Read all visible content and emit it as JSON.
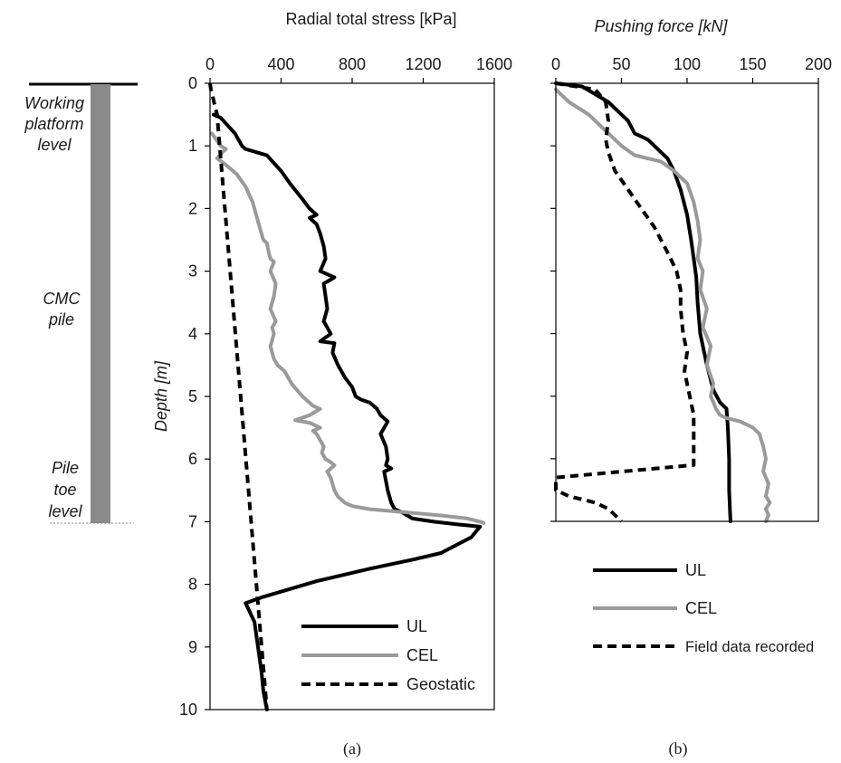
{
  "chart_data": [
    {
      "type": "line",
      "panel_label": "(a)",
      "xlabel": "Radial total stress [kPa]",
      "ylabel": "Depth [m]",
      "xlim": [
        0,
        1600
      ],
      "ylim": [
        0,
        10
      ],
      "y_inverted": true,
      "x_axis_position": "top",
      "x_ticks": [
        "0",
        "400",
        "800",
        "1200",
        "1600"
      ],
      "y_ticks": [
        "0",
        "1",
        "2",
        "3",
        "4",
        "5",
        "6",
        "7",
        "8",
        "9",
        "10"
      ],
      "grid": false,
      "legend_position": "bottom-right",
      "series": [
        {
          "name": "UL",
          "color": "#000000",
          "style": "solid",
          "x": [
            20,
            60,
            140,
            170,
            180,
            200,
            320,
            400,
            450,
            520,
            560,
            580,
            600,
            560,
            600,
            620,
            640,
            650,
            620,
            700,
            640,
            650,
            660,
            640,
            680,
            620,
            700,
            690,
            720,
            760,
            800,
            820,
            850,
            900,
            940,
            960,
            1000,
            960,
            990,
            1000,
            990,
            1020,
            980,
            990,
            1000,
            1020,
            1040,
            1080,
            1140,
            1260,
            1420,
            1520,
            1470,
            1300,
            1150,
            900,
            600,
            300,
            200,
            250,
            270,
            290,
            300,
            320
          ],
          "y": [
            0.5,
            0.55,
            0.8,
            0.95,
            1.0,
            1.05,
            1.15,
            1.4,
            1.6,
            1.85,
            2.0,
            2.05,
            2.1,
            2.15,
            2.25,
            2.4,
            2.6,
            2.8,
            3.0,
            3.1,
            3.2,
            3.4,
            3.6,
            3.8,
            4.0,
            4.12,
            4.15,
            4.3,
            4.5,
            4.7,
            4.85,
            5.0,
            5.05,
            5.1,
            5.2,
            5.3,
            5.4,
            5.6,
            5.8,
            6.0,
            6.1,
            6.15,
            6.2,
            6.35,
            6.5,
            6.7,
            6.8,
            6.85,
            6.95,
            7.0,
            7.05,
            7.08,
            7.25,
            7.5,
            7.6,
            7.75,
            7.95,
            8.2,
            8.3,
            8.6,
            9.0,
            9.4,
            9.7,
            10.0
          ]
        },
        {
          "name": "CEL",
          "color": "#9a9a9a",
          "style": "solid",
          "x": [
            10,
            60,
            90,
            70,
            40,
            80,
            150,
            200,
            240,
            260,
            280,
            300,
            320,
            330,
            340,
            360,
            340,
            370,
            360,
            340,
            370,
            350,
            360,
            340,
            360,
            380,
            420,
            460,
            520,
            580,
            620,
            560,
            480,
            560,
            620,
            580,
            600,
            620,
            640,
            630,
            650,
            680,
            700,
            660,
            680,
            700,
            720,
            760,
            800,
            900,
            1100,
            1300,
            1450,
            1520,
            1540
          ],
          "y": [
            0.8,
            1.0,
            1.05,
            1.1,
            1.2,
            1.28,
            1.45,
            1.65,
            1.9,
            2.1,
            2.3,
            2.5,
            2.55,
            2.7,
            2.8,
            2.85,
            3.0,
            3.2,
            3.4,
            3.6,
            3.8,
            3.9,
            4.0,
            4.2,
            4.4,
            4.5,
            4.6,
            4.8,
            5.0,
            5.15,
            5.2,
            5.3,
            5.38,
            5.42,
            5.5,
            5.55,
            5.6,
            5.7,
            5.8,
            5.9,
            6.0,
            6.05,
            6.1,
            6.2,
            6.3,
            6.5,
            6.6,
            6.7,
            6.75,
            6.8,
            6.85,
            6.9,
            6.95,
            7.0,
            7.02
          ]
        },
        {
          "name": "Geostatic",
          "color": "#000000",
          "style": "dashed",
          "x": [
            0,
            5,
            40,
            60,
            320
          ],
          "y": [
            0,
            0.1,
            0.5,
            1.2,
            10.0
          ]
        }
      ]
    },
    {
      "type": "line",
      "panel_label": "(b)",
      "xlabel": "Pushing force [kN]",
      "xlim": [
        0,
        200
      ],
      "ylim": [
        0,
        7
      ],
      "y_inverted": true,
      "x_axis_position": "top",
      "x_ticks": [
        "0",
        "50",
        "100",
        "150",
        "200"
      ],
      "grid": false,
      "legend_position": "below",
      "series": [
        {
          "name": "UL",
          "color": "#000000",
          "style": "solid",
          "x": [
            0,
            20,
            40,
            55,
            60,
            70,
            75,
            80,
            85,
            90,
            95,
            100,
            103,
            105,
            107,
            108,
            110,
            115,
            120,
            125,
            130,
            131,
            132,
            132,
            133
          ],
          "y": [
            0,
            0.05,
            0.3,
            0.6,
            0.8,
            0.9,
            1.0,
            1.1,
            1.2,
            1.4,
            1.7,
            2.1,
            2.5,
            2.8,
            3.1,
            3.5,
            4.0,
            4.5,
            4.9,
            5.1,
            5.2,
            5.5,
            6.0,
            6.5,
            7.0
          ]
        },
        {
          "name": "CEL",
          "color": "#9a9a9a",
          "style": "solid",
          "x": [
            0,
            10,
            25,
            40,
            50,
            60,
            70,
            80,
            90,
            100,
            105,
            108,
            110,
            108,
            112,
            110,
            115,
            112,
            118,
            115,
            120,
            118,
            122,
            125,
            130,
            140,
            150,
            155,
            158,
            160,
            158,
            162,
            160,
            163,
            160,
            162,
            160
          ],
          "y": [
            0.1,
            0.3,
            0.5,
            0.8,
            1.0,
            1.15,
            1.2,
            1.25,
            1.4,
            1.6,
            1.9,
            2.2,
            2.5,
            2.8,
            3.0,
            3.3,
            3.6,
            3.9,
            4.2,
            4.5,
            4.8,
            5.0,
            5.2,
            5.3,
            5.35,
            5.4,
            5.5,
            5.6,
            5.8,
            6.0,
            6.2,
            6.4,
            6.6,
            6.7,
            6.8,
            6.9,
            7.0
          ]
        },
        {
          "name": "Field data recorded",
          "color": "#000000",
          "style": "dashed",
          "x": [
            0,
            30,
            38,
            40,
            38,
            40,
            45,
            55,
            65,
            75,
            85,
            92,
            95,
            95,
            97,
            100,
            98,
            102,
            105,
            105,
            105,
            0,
            0,
            10,
            30,
            40,
            50
          ],
          "y": [
            0,
            0.1,
            0.3,
            0.6,
            0.9,
            1.1,
            1.4,
            1.7,
            2.0,
            2.3,
            2.7,
            3.0,
            3.3,
            3.6,
            4.0,
            4.3,
            4.6,
            5.0,
            5.3,
            5.6,
            6.1,
            6.3,
            6.5,
            6.6,
            6.7,
            6.8,
            7.0
          ]
        }
      ]
    }
  ],
  "pile_schematic": {
    "top_label": "Working platform level",
    "middle_label": "CMC pile",
    "bottom_label": "Pile toe level",
    "top_lines": [
      "Working",
      "platform",
      "level"
    ],
    "middle_lines": [
      "CMC",
      "pile"
    ],
    "bottom_lines": [
      "Pile",
      "toe",
      "level"
    ],
    "pile_color": "#8a8a8a"
  }
}
